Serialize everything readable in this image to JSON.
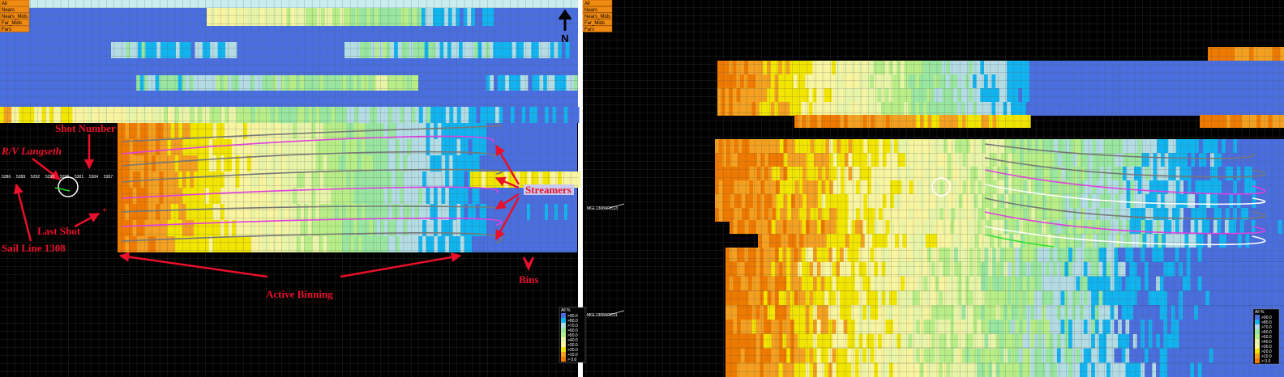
{
  "left_panel": {
    "menu": [
      "All",
      "Nears",
      "Nears_Mids",
      "Far_Mids",
      "Fars"
    ],
    "north": "N",
    "shot_numbers": [
      "5286",
      "5289",
      "5292",
      "5295",
      "5298",
      "5301",
      "5304",
      "5307"
    ],
    "annotations": {
      "shot_number": "Shot Number",
      "vessel": "R/V Langseth",
      "last_shot": "Last Shot",
      "sail_line": "Sail Line 1308",
      "streamers": "Streamers",
      "active_binning": "Active Binning",
      "bins": "Bins"
    },
    "legend": {
      "title": "All %",
      "labels": [
        ">90.0",
        ">80.0",
        ">70.0",
        ">60.0",
        ">50.0",
        ">40.0",
        ">30.0",
        ">20.0",
        ">10.0",
        "> 0.0"
      ]
    }
  },
  "right_panel": {
    "menu": [
      "All",
      "Nears",
      "Nears_Mids",
      "Far_Mids",
      "Fars"
    ],
    "line_labels": [
      "MGL1308ARC13",
      "MGL1308ARC11"
    ],
    "legend": {
      "title": "All %",
      "labels": [
        ">90.0",
        ">80.0",
        ">70.0",
        ">60.0",
        ">50.0",
        ">40.0",
        ">30.0",
        ">20.0",
        ">10.0",
        "> 0.0"
      ]
    }
  }
}
